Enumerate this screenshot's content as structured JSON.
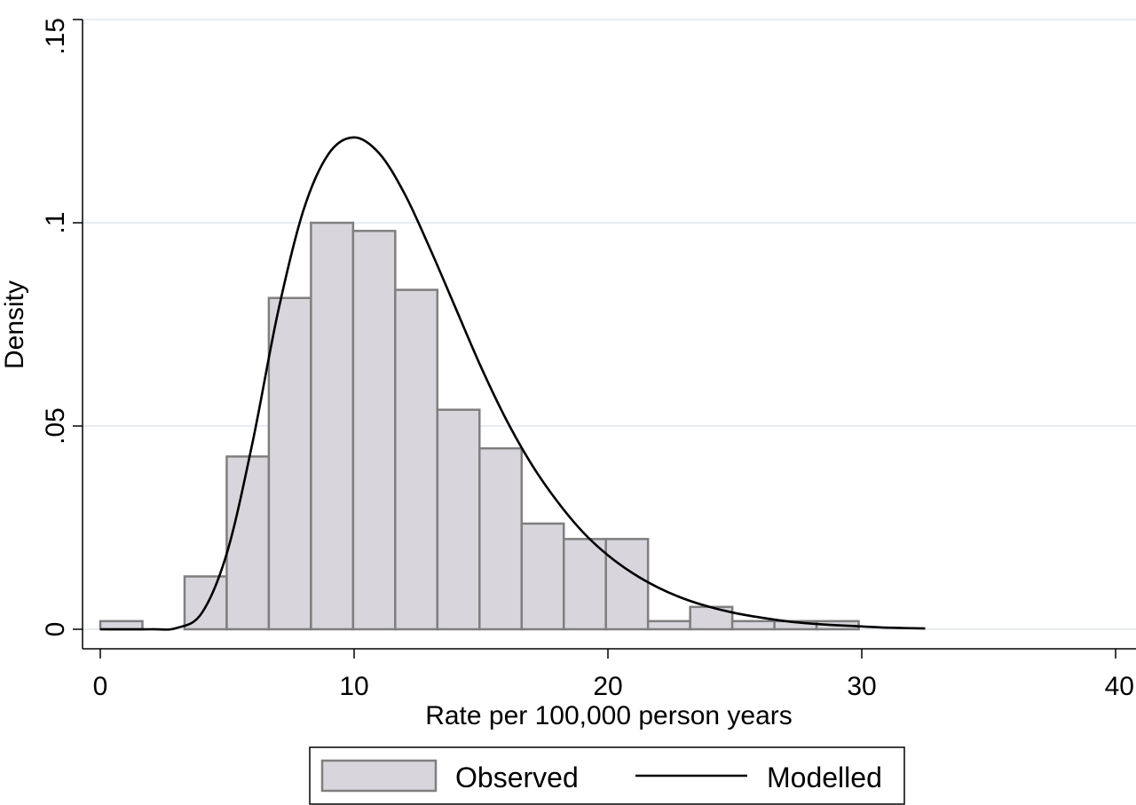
{
  "chart_data": {
    "type": "bar",
    "title": "",
    "xlabel": "Rate per 100,000 person years",
    "ylabel": "Density",
    "xlim": [
      0,
      40
    ],
    "ylim": [
      0,
      0.15
    ],
    "grid": true,
    "legend_placement": "bottom",
    "x_ticks": [
      {
        "value": 0,
        "label": "0"
      },
      {
        "value": 10,
        "label": "10"
      },
      {
        "value": 20,
        "label": "20"
      },
      {
        "value": 30,
        "label": "30"
      },
      {
        "value": 40,
        "label": "40"
      }
    ],
    "y_ticks": [
      {
        "value": 0,
        "label": "0"
      },
      {
        "value": 0.05,
        "label": ".05"
      },
      {
        "value": 0.1,
        "label": ".1"
      },
      {
        "value": 0.15,
        "label": ".15"
      }
    ],
    "series": [
      {
        "name": "Observed",
        "type": "histogram",
        "color": "#d8d6dc",
        "edge_color": "#7f7f7f",
        "bins": [
          {
            "x0": 0.0,
            "x1": 1.66,
            "density": 0.002
          },
          {
            "x0": 1.66,
            "x1": 3.32,
            "density": 0.0
          },
          {
            "x0": 3.32,
            "x1": 4.98,
            "density": 0.013
          },
          {
            "x0": 4.98,
            "x1": 6.64,
            "density": 0.0425
          },
          {
            "x0": 6.64,
            "x1": 8.3,
            "density": 0.0815
          },
          {
            "x0": 8.3,
            "x1": 9.96,
            "density": 0.1
          },
          {
            "x0": 9.96,
            "x1": 11.62,
            "density": 0.098
          },
          {
            "x0": 11.62,
            "x1": 13.28,
            "density": 0.0835
          },
          {
            "x0": 13.28,
            "x1": 14.94,
            "density": 0.054
          },
          {
            "x0": 14.94,
            "x1": 16.6,
            "density": 0.0445
          },
          {
            "x0": 16.6,
            "x1": 18.26,
            "density": 0.026
          },
          {
            "x0": 18.26,
            "x1": 19.92,
            "density": 0.0222
          },
          {
            "x0": 19.92,
            "x1": 21.58,
            "density": 0.0222
          },
          {
            "x0": 21.58,
            "x1": 23.24,
            "density": 0.002
          },
          {
            "x0": 23.24,
            "x1": 24.9,
            "density": 0.0055
          },
          {
            "x0": 24.9,
            "x1": 26.56,
            "density": 0.002
          },
          {
            "x0": 26.56,
            "x1": 28.22,
            "density": 0.002
          },
          {
            "x0": 28.22,
            "x1": 29.88,
            "density": 0.002
          }
        ]
      },
      {
        "name": "Modelled",
        "type": "line",
        "color": "#000000",
        "points": [
          [
            0,
            0.0
          ],
          [
            2,
            0.0
          ],
          [
            3,
            0.0003
          ],
          [
            4,
            0.004
          ],
          [
            5,
            0.019
          ],
          [
            6,
            0.046
          ],
          [
            7,
            0.078
          ],
          [
            8,
            0.103
          ],
          [
            9,
            0.117
          ],
          [
            10,
            0.121
          ],
          [
            11,
            0.117
          ],
          [
            12,
            0.107
          ],
          [
            13,
            0.0935
          ],
          [
            14,
            0.079
          ],
          [
            15,
            0.0645
          ],
          [
            16,
            0.0515
          ],
          [
            17,
            0.0405
          ],
          [
            18,
            0.0315
          ],
          [
            19,
            0.024
          ],
          [
            20,
            0.0182
          ],
          [
            21,
            0.0137
          ],
          [
            22,
            0.0102
          ],
          [
            23,
            0.0075
          ],
          [
            24,
            0.0055
          ],
          [
            25,
            0.004
          ],
          [
            26,
            0.0029
          ],
          [
            27,
            0.002
          ],
          [
            28,
            0.0014
          ],
          [
            29,
            0.001
          ],
          [
            30,
            0.0007
          ],
          [
            31,
            0.0004
          ],
          [
            32.5,
            0.0002
          ]
        ]
      }
    ]
  }
}
